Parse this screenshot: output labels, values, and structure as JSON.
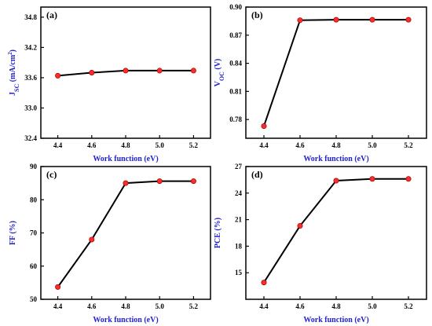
{
  "chart_data": [
    {
      "type": "line",
      "panel_label": "(a)",
      "x": [
        4.4,
        4.6,
        4.8,
        5.0,
        5.2
      ],
      "series": [
        {
          "values": [
            33.64,
            33.7,
            33.74,
            33.74,
            33.74
          ]
        }
      ],
      "xlabel": "Work function (eV)",
      "ylabel": "J_SC (mA/cm^2)",
      "ylabel_parts": {
        "main": "J",
        "sub": "SC",
        "unit": " (mA/cm",
        "sup": "2",
        "close": ")"
      },
      "xlim": [
        4.3,
        5.3
      ],
      "ylim": [
        32.4,
        35.0
      ],
      "xticks": [
        "4.4",
        "4.6",
        "4.8",
        "5.0",
        "5.2"
      ],
      "yticks": [
        "32.4",
        "33.0",
        "33.6",
        "34.2",
        "34.8"
      ],
      "grid": false,
      "colors": {
        "line": "#000000",
        "marker": "#ff2a2a",
        "ylabel": "#2222cc"
      }
    },
    {
      "type": "line",
      "panel_label": "(b)",
      "x": [
        4.4,
        4.6,
        4.8,
        5.0,
        5.2
      ],
      "series": [
        {
          "values": [
            0.773,
            0.886,
            0.8865,
            0.8865,
            0.8865
          ]
        }
      ],
      "xlabel": "Work function (eV)",
      "ylabel": "V_OC (V)",
      "ylabel_parts": {
        "main": "V",
        "sub": "OC",
        "unit": " (V)",
        "sup": "",
        "close": ""
      },
      "xlim": [
        4.3,
        5.3
      ],
      "ylim": [
        0.76,
        0.9
      ],
      "xticks": [
        "4.4",
        "4.6",
        "4.8",
        "5.0",
        "5.2"
      ],
      "yticks": [
        "0.78",
        "0.81",
        "0.84",
        "0.87",
        "0.90"
      ],
      "grid": false,
      "colors": {
        "line": "#000000",
        "marker": "#ff2a2a",
        "ylabel": "#2222cc"
      }
    },
    {
      "type": "line",
      "panel_label": "(c)",
      "x": [
        4.4,
        4.6,
        4.8,
        5.0,
        5.2
      ],
      "series": [
        {
          "values": [
            53.7,
            68.0,
            85.0,
            85.6,
            85.6
          ]
        }
      ],
      "xlabel": "Work function (eV)",
      "ylabel": "FF (%)",
      "ylabel_parts": {
        "main": "FF (%)",
        "sub": "",
        "unit": "",
        "sup": "",
        "close": ""
      },
      "xlim": [
        4.3,
        5.3
      ],
      "ylim": [
        50,
        90
      ],
      "xticks": [
        "4.4",
        "4.6",
        "4.8",
        "5.0",
        "5.2"
      ],
      "yticks": [
        "50",
        "60",
        "70",
        "80",
        "90"
      ],
      "grid": false,
      "colors": {
        "line": "#000000",
        "marker": "#ff2a2a",
        "ylabel": "#2222cc"
      }
    },
    {
      "type": "line",
      "panel_label": "(d)",
      "x": [
        4.4,
        4.6,
        4.8,
        5.0,
        5.2
      ],
      "series": [
        {
          "values": [
            13.9,
            20.3,
            25.4,
            25.6,
            25.6
          ]
        }
      ],
      "xlabel": "Work function (eV)",
      "ylabel": "PCE (%)",
      "ylabel_parts": {
        "main": "PCE (%)",
        "sub": "",
        "unit": "",
        "sup": "",
        "close": ""
      },
      "xlim": [
        4.3,
        5.3
      ],
      "ylim": [
        12,
        27
      ],
      "xticks": [
        "4.4",
        "4.6",
        "4.8",
        "5.0",
        "5.2"
      ],
      "yticks": [
        "15",
        "18",
        "21",
        "24",
        "27"
      ],
      "ytick_values": [
        15,
        18,
        21,
        24,
        27
      ],
      "grid": false,
      "colors": {
        "line": "#000000",
        "marker": "#ff2a2a",
        "ylabel": "#2222cc"
      }
    }
  ]
}
